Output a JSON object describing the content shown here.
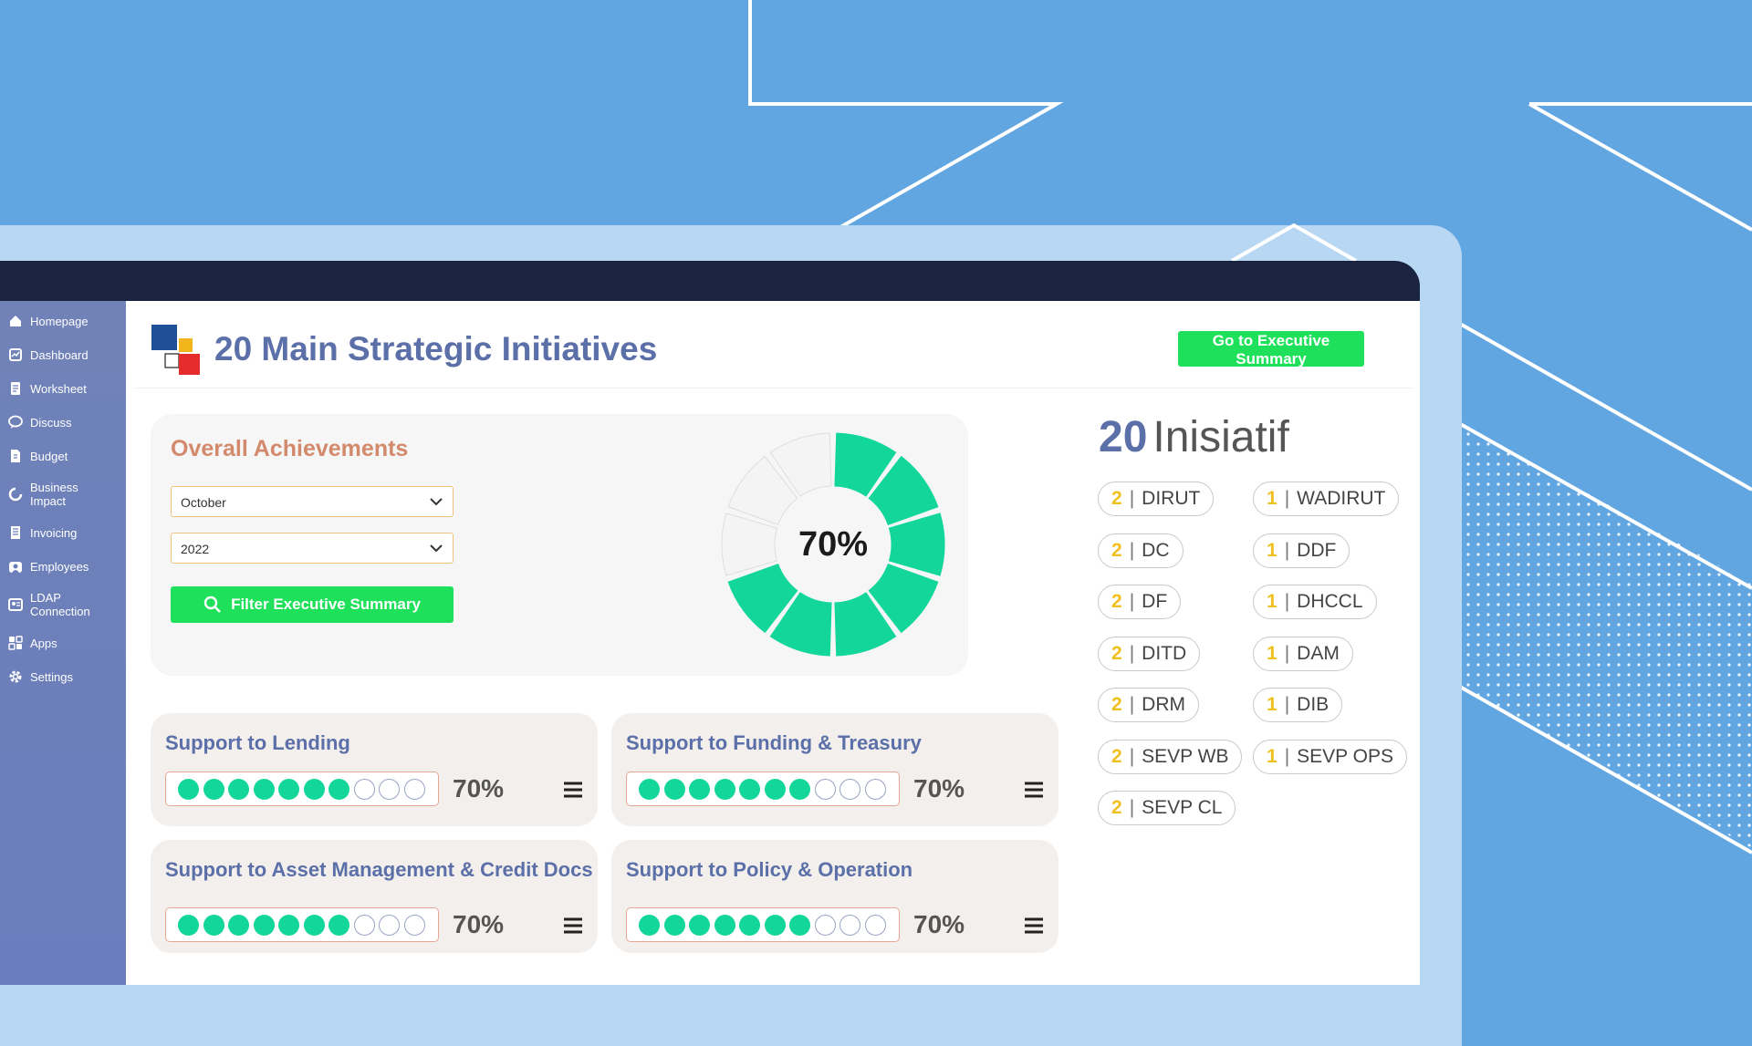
{
  "sidebar": {
    "items": [
      {
        "label": "Homepage",
        "icon": "home-icon"
      },
      {
        "label": "Dashboard",
        "icon": "dashboard-icon"
      },
      {
        "label": "Worksheet",
        "icon": "worksheet-icon"
      },
      {
        "label": "Discuss",
        "icon": "chat-icon"
      },
      {
        "label": "Budget",
        "icon": "budget-icon"
      },
      {
        "label": "Business Impact",
        "icon": "impact-icon"
      },
      {
        "label": "Invoicing",
        "icon": "invoice-icon"
      },
      {
        "label": "Employees",
        "icon": "employees-icon"
      },
      {
        "label": "LDAP Connection",
        "icon": "ldap-icon"
      },
      {
        "label": "Apps",
        "icon": "apps-icon"
      },
      {
        "label": "Settings",
        "icon": "gear-icon"
      }
    ]
  },
  "header": {
    "title": "20 Main Strategic Initiatives",
    "exec_button": "Go to Executive Summary"
  },
  "achievements": {
    "title": "Overall Achievements",
    "month": "October",
    "year": "2022",
    "filter_button": "Filter Executive Summary",
    "percent_label": "70%",
    "percent_value": 0.7,
    "segments_total": 10,
    "segments_filled": 7
  },
  "initiatives": [
    {
      "title": "Support to Lending",
      "pct_label": "70%",
      "filled": 7,
      "total": 10
    },
    {
      "title": "Support to Funding & Treasury",
      "pct_label": "70%",
      "filled": 7,
      "total": 10
    },
    {
      "title": "Support to Asset Management & Credit Docs",
      "pct_label": "70%",
      "filled": 7,
      "total": 10
    },
    {
      "title": "Support to Policy & Operation",
      "pct_label": "70%",
      "filled": 7,
      "total": 10
    }
  ],
  "inisiatif": {
    "count": "20",
    "word": "Inisiatif",
    "left": [
      {
        "count": "2",
        "code": "DIRUT"
      },
      {
        "count": "2",
        "code": "DC"
      },
      {
        "count": "2",
        "code": "DF"
      },
      {
        "count": "2",
        "code": "DITD"
      },
      {
        "count": "2",
        "code": "DRM"
      },
      {
        "count": "2",
        "code": "SEVP WB"
      },
      {
        "count": "2",
        "code": "SEVP CL"
      }
    ],
    "right": [
      {
        "count": "1",
        "code": "WADIRUT"
      },
      {
        "count": "1",
        "code": "DDF"
      },
      {
        "count": "1",
        "code": "DHCCL"
      },
      {
        "count": "1",
        "code": "DAM"
      },
      {
        "count": "1",
        "code": "DIB"
      },
      {
        "count": "1",
        "code": "SEVP OPS"
      }
    ]
  },
  "colors": {
    "accent_green": "#1fe05a",
    "segment_green": "#12d69a",
    "title_blue": "#5b6fa8",
    "orange_title": "#d38a6c",
    "tag_count_yellow": "#f0c020"
  }
}
